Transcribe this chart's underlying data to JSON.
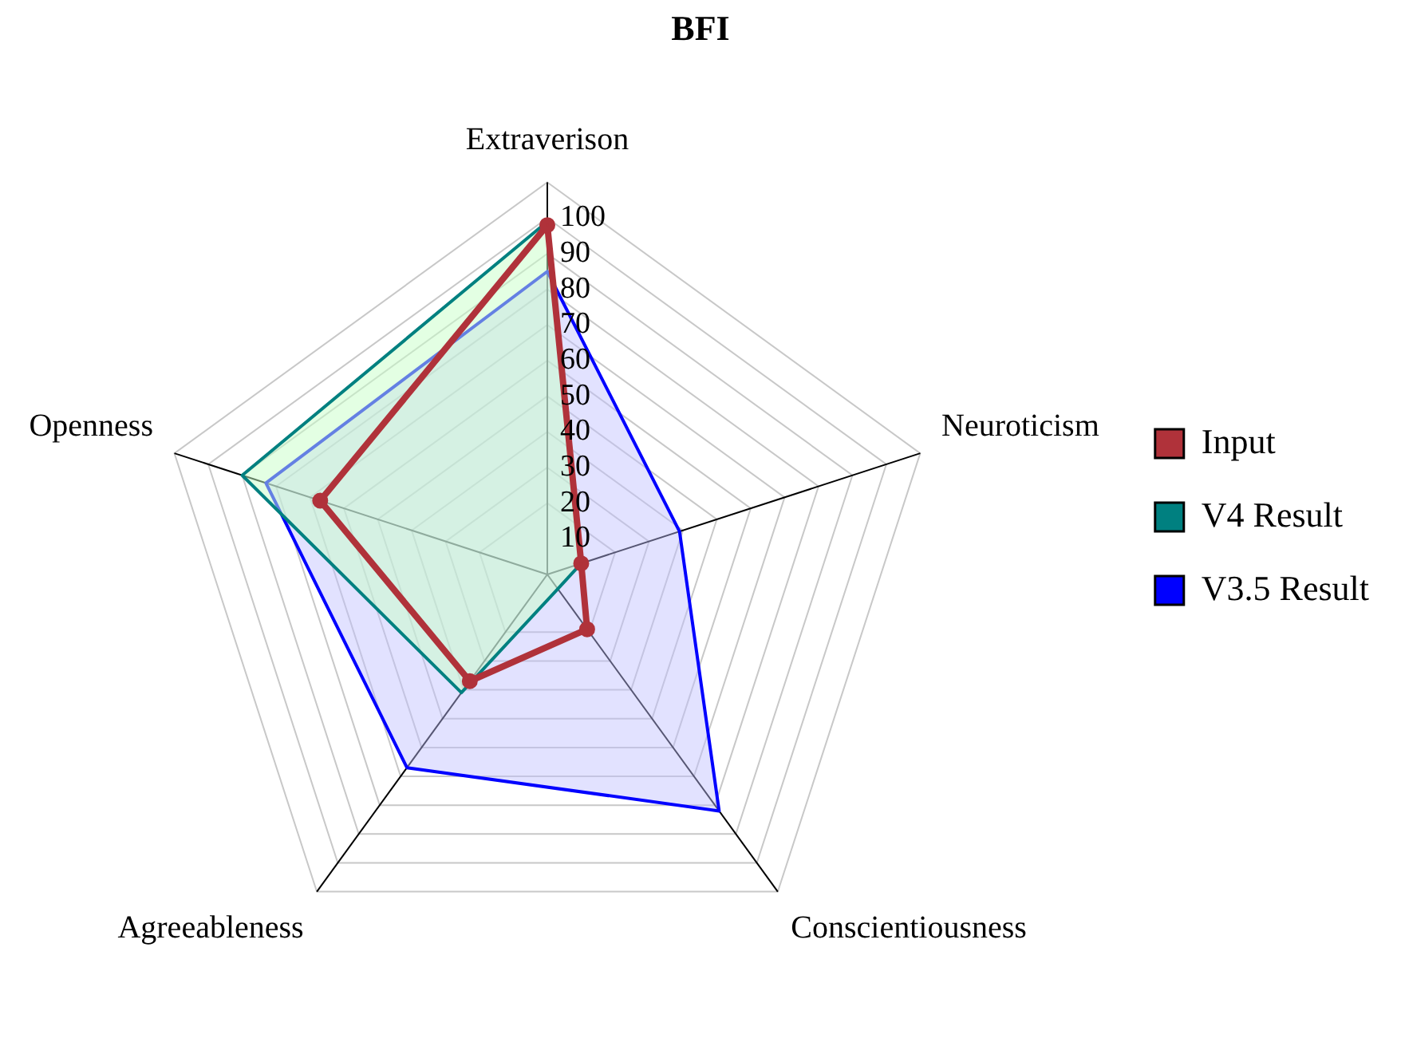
{
  "chart_data": {
    "type": "radar",
    "title": "BFI",
    "categories": [
      "Extraverison",
      "Neuroticism",
      "Conscientiousness",
      "Agreeableness",
      "Openness"
    ],
    "series": [
      {
        "name": "Input",
        "color": "#b0323a",
        "values": [
          98,
          10,
          19,
          37,
          67
        ],
        "marker": "circle"
      },
      {
        "name": "V4 Result",
        "color": "#008080",
        "values": [
          99,
          10,
          5,
          41,
          90
        ]
      },
      {
        "name": "V3.5 Result",
        "color": "#0000ff",
        "values": [
          85,
          39,
          82,
          67,
          83
        ]
      }
    ],
    "ylim": [
      0,
      110
    ],
    "yticks": [
      10,
      20,
      30,
      40,
      50,
      60,
      70,
      80,
      90,
      100
    ],
    "grid": true,
    "legend": "right"
  }
}
